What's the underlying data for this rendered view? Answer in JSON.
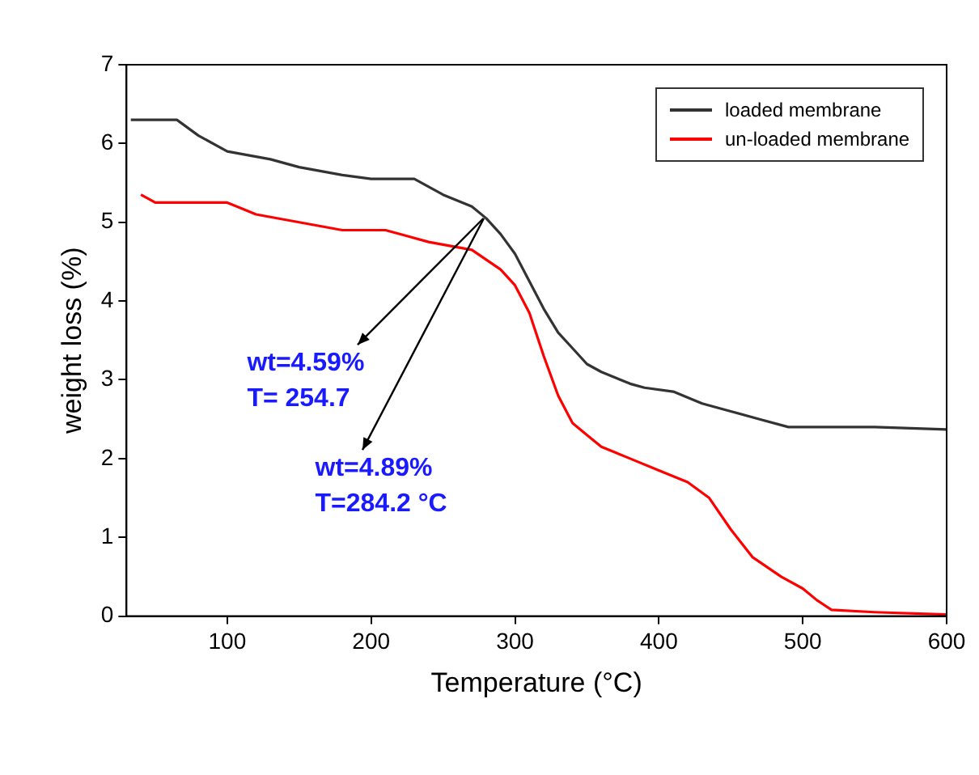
{
  "chart_data": {
    "type": "line",
    "xlabel": "Temperature (°C)",
    "ylabel": "weight loss (%)",
    "xlim": [
      30,
      600
    ],
    "xticks": [
      100,
      200,
      300,
      400,
      500,
      600
    ],
    "ylim": [
      0,
      7
    ],
    "yticks": [
      0,
      1,
      2,
      3,
      4,
      5,
      6,
      7
    ],
    "grid": false,
    "legend": "top right",
    "marker": "none",
    "line_style": "solid",
    "series": [
      {
        "name": "loaded membrane",
        "color": "#333333",
        "x": [
          33,
          65,
          80,
          100,
          130,
          150,
          180,
          200,
          230,
          250,
          270,
          280,
          290,
          300,
          310,
          320,
          330,
          340,
          350,
          360,
          380,
          390,
          410,
          430,
          450,
          470,
          490,
          520,
          550,
          600
        ],
        "values": [
          6.3,
          6.3,
          6.1,
          5.9,
          5.8,
          5.7,
          5.6,
          5.55,
          5.55,
          5.35,
          5.2,
          5.05,
          4.85,
          4.6,
          4.25,
          3.9,
          3.6,
          3.4,
          3.2,
          3.1,
          2.95,
          2.9,
          2.85,
          2.7,
          2.6,
          2.5,
          2.4,
          2.4,
          2.4,
          2.37
        ]
      },
      {
        "name": "un-loaded membrane",
        "color": "#ff0000",
        "x": [
          40,
          50,
          100,
          120,
          150,
          180,
          210,
          240,
          270,
          290,
          300,
          310,
          320,
          330,
          340,
          350,
          360,
          380,
          400,
          420,
          435,
          450,
          465,
          485,
          500,
          510,
          520,
          550,
          600
        ],
        "values": [
          5.35,
          5.25,
          5.25,
          5.1,
          5.0,
          4.9,
          4.9,
          4.75,
          4.65,
          4.4,
          4.2,
          3.85,
          3.3,
          2.8,
          2.45,
          2.3,
          2.15,
          2.0,
          1.85,
          1.7,
          1.5,
          1.1,
          0.75,
          0.5,
          0.35,
          0.2,
          0.08,
          0.05,
          0.02
        ]
      }
    ],
    "annotations": [
      {
        "text": "wt=4.59%\nT= 254.7",
        "x": 278,
        "y": 5.05
      },
      {
        "text": "wt=4.89%\nT=284.2 °C",
        "x": 278,
        "y": 5.05
      }
    ]
  }
}
